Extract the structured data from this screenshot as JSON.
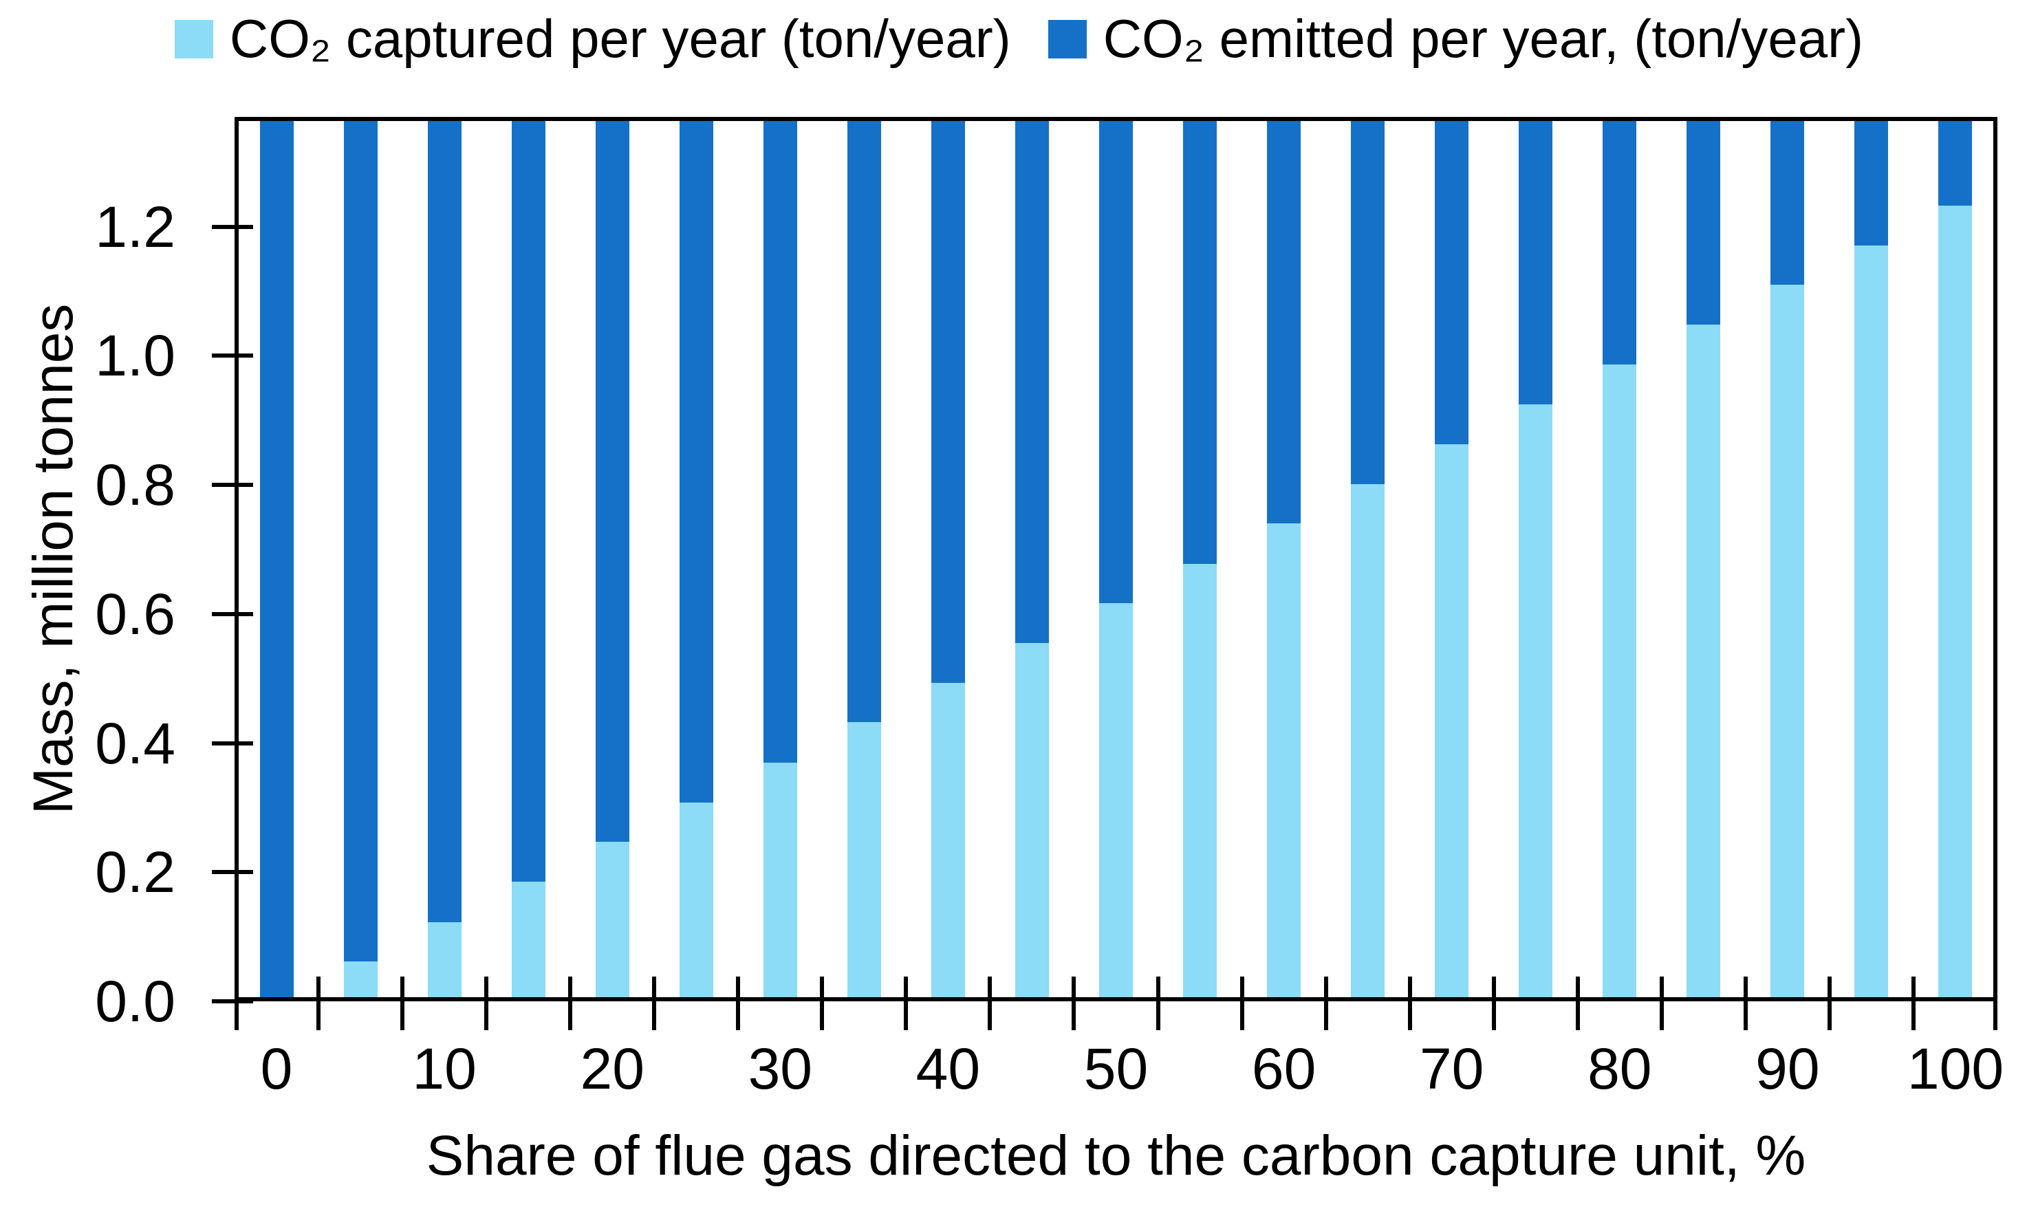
{
  "chart_data": {
    "type": "bar",
    "stacked": true,
    "title": "",
    "xlabel": "Share of flue gas directed to the carbon capture unit, %",
    "ylabel": "Mass, million tonnes",
    "categories": [
      0,
      5,
      10,
      15,
      20,
      25,
      30,
      35,
      40,
      45,
      50,
      55,
      60,
      65,
      70,
      75,
      80,
      85,
      90,
      95,
      100
    ],
    "x_tick_labels": [
      "0",
      "10",
      "20",
      "30",
      "40",
      "50",
      "60",
      "70",
      "80",
      "90",
      "100"
    ],
    "y_ticks": [
      0.0,
      0.2,
      0.4,
      0.6,
      0.8,
      1.0,
      1.2
    ],
    "y_tick_labels": [
      "0.0",
      "0.2",
      "0.4",
      "0.6",
      "0.8",
      "1.0",
      "1.2"
    ],
    "ylim": [
      0,
      1.37
    ],
    "grid": false,
    "legend_position": "top",
    "axis_color": "#000000",
    "background": "#FFFFFF",
    "series": [
      {
        "name": "CO₂ captured per year (ton/year)",
        "color": "#8CDBF7",
        "values": [
          0.0,
          0.062,
          0.123,
          0.185,
          0.247,
          0.308,
          0.37,
          0.432,
          0.493,
          0.555,
          0.617,
          0.678,
          0.74,
          0.801,
          0.863,
          0.925,
          0.986,
          1.048,
          1.11,
          1.171,
          1.233
        ]
      },
      {
        "name": "CO₂ emitted per year, (ton/year)",
        "color": "#1471C7",
        "values": [
          1.37,
          1.308,
          1.247,
          1.185,
          1.123,
          1.062,
          1.0,
          0.938,
          0.877,
          0.815,
          0.753,
          0.692,
          0.63,
          0.569,
          0.507,
          0.445,
          0.384,
          0.322,
          0.26,
          0.199,
          0.137
        ]
      }
    ]
  }
}
